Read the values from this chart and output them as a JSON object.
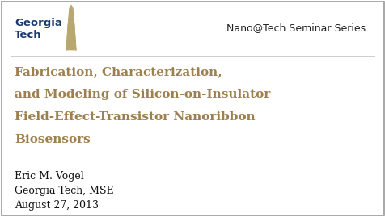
{
  "background_color": "#ffffff",
  "border_color": "#999999",
  "gt_color": "#1a3a6b",
  "gt_tower_color": "#b8a870",
  "seminar_text": "Nano@Tech Seminar Series",
  "seminar_color": "#222222",
  "seminar_fontsize": 9,
  "title_lines": [
    "Fabrication, Characterization,",
    "and Modeling of Silicon-on-Insulator",
    "Field-Effect-Transistor Nanoribbon",
    "Biosensors"
  ],
  "title_color": "#9e8050",
  "title_fontsize": 11,
  "author_lines": [
    "Eric M. Vogel",
    "Georgia Tech, MSE",
    "August 27, 2013"
  ],
  "author_color": "#111111",
  "author_fontsize": 9
}
